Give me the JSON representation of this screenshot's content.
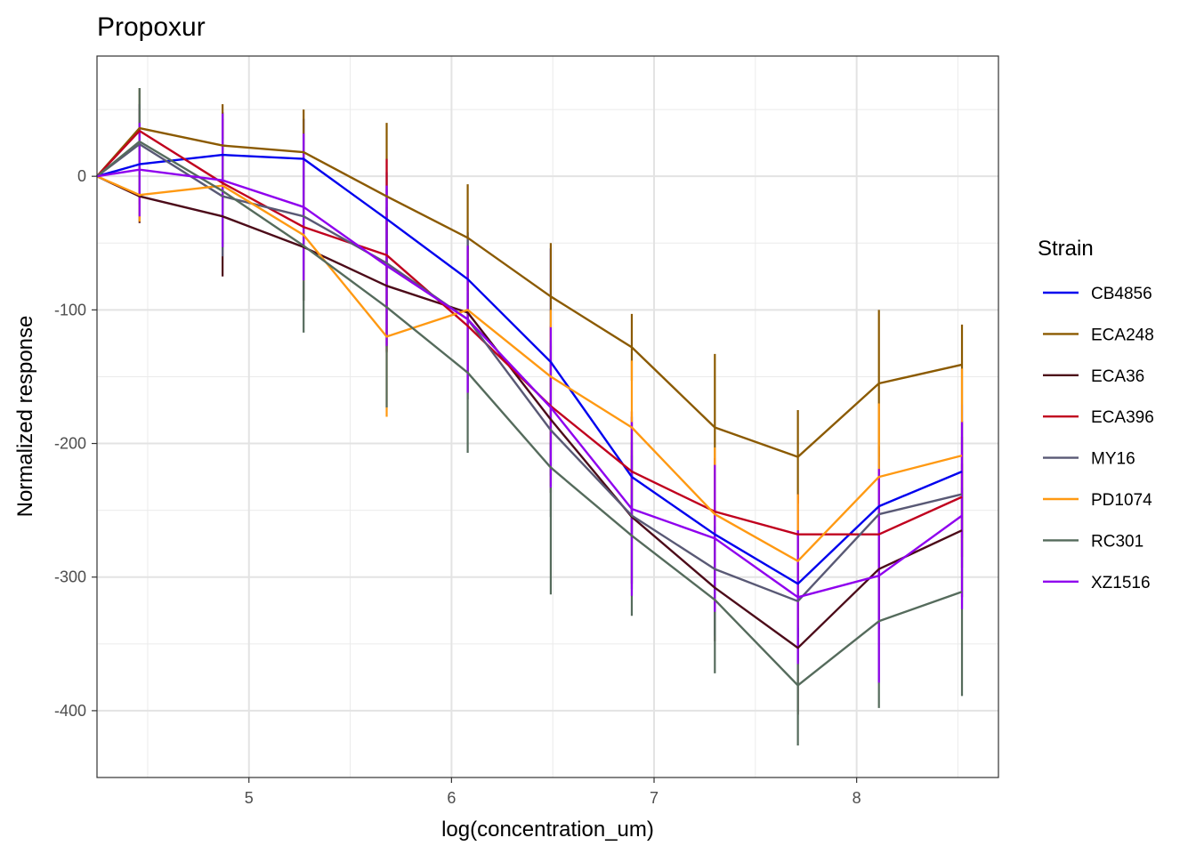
{
  "chart_data": {
    "type": "line",
    "title": "Propoxur",
    "xlabel": "log(concentration_um)",
    "ylabel": "Normalized response",
    "xlim": [
      4.25,
      8.7
    ],
    "ylim": [
      -450,
      90
    ],
    "x_ticks": [
      5,
      6,
      7,
      8
    ],
    "x_tick_labels": [
      "5",
      "6",
      "7",
      "8"
    ],
    "y_ticks": [
      0,
      -100,
      -200,
      -300,
      -400
    ],
    "y_tick_labels": [
      "0",
      "-100",
      "-200",
      "-300",
      "-400"
    ],
    "grid": true,
    "legend": {
      "title": "Strain",
      "position": "right"
    },
    "x": [
      4.25,
      4.46,
      4.87,
      5.27,
      5.68,
      6.08,
      6.49,
      6.89,
      7.3,
      7.71,
      8.11,
      8.52
    ],
    "series": [
      {
        "name": "CB4856",
        "color": "#0000ee",
        "values": [
          0,
          9,
          16,
          13,
          -32,
          -77,
          -139,
          -225,
          -268,
          -305,
          -247,
          -221
        ],
        "err": [
          0,
          30,
          32,
          30,
          35,
          35,
          85,
          45,
          45,
          40,
          45,
          50
        ]
      },
      {
        "name": "ECA248",
        "color": "#8b5a00",
        "values": [
          0,
          36,
          23,
          18,
          -15,
          -46,
          -90,
          -128,
          -188,
          -210,
          -155,
          -141
        ],
        "err": [
          0,
          30,
          31,
          32,
          55,
          40,
          40,
          25,
          55,
          35,
          55,
          30
        ]
      },
      {
        "name": "ECA36",
        "color": "#4c0b19",
        "values": [
          0,
          -15,
          -30,
          -53,
          -82,
          -102,
          -182,
          -255,
          -308,
          -353,
          -294,
          -265
        ],
        "err": [
          0,
          20,
          45,
          40,
          50,
          50,
          55,
          50,
          40,
          50,
          45,
          50
        ]
      },
      {
        "name": "ECA396",
        "color": "#c0001e",
        "values": [
          0,
          34,
          -5,
          -38,
          -59,
          -112,
          -172,
          -221,
          -251,
          -268,
          -268,
          -240
        ],
        "err": [
          0,
          20,
          48,
          40,
          72,
          50,
          60,
          45,
          40,
          30,
          40,
          45
        ]
      },
      {
        "name": "MY16",
        "color": "#595975",
        "values": [
          0,
          24,
          -15,
          -30,
          -65,
          -107,
          -190,
          -254,
          -294,
          -318,
          -253,
          -238
        ],
        "err": [
          0,
          30,
          45,
          45,
          55,
          60,
          65,
          55,
          50,
          45,
          45,
          55
        ]
      },
      {
        "name": "PD1074",
        "color": "#ff9912",
        "values": [
          0,
          -14,
          -7,
          -44,
          -120,
          -100,
          -150,
          -188,
          -253,
          -288,
          -225,
          -209
        ],
        "err": [
          0,
          20,
          35,
          35,
          60,
          45,
          50,
          50,
          50,
          50,
          55,
          65
        ]
      },
      {
        "name": "RC301",
        "color": "#556b5c",
        "values": [
          0,
          26,
          -11,
          -52,
          -98,
          -147,
          -218,
          -269,
          -317,
          -381,
          -333,
          -311
        ],
        "err": [
          0,
          40,
          40,
          65,
          75,
          60,
          95,
          60,
          55,
          45,
          65,
          78
        ]
      },
      {
        "name": "XZ1516",
        "color": "#8f00ee",
        "values": [
          0,
          5,
          -3,
          -23,
          -67,
          -107,
          -173,
          -249,
          -271,
          -315,
          -299,
          -254
        ],
        "err": [
          0,
          35,
          50,
          55,
          60,
          55,
          60,
          65,
          55,
          50,
          80,
          70
        ]
      }
    ]
  }
}
